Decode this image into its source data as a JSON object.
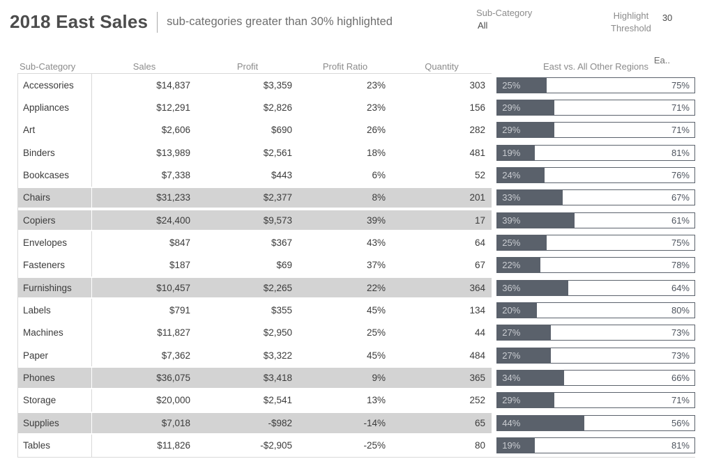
{
  "colors": {
    "bar_dark": "#5a616b",
    "highlight_row_bg": "#d3d3d3",
    "header_text": "#8b8b8b",
    "cell_text": "#3b3b3b"
  },
  "header": {
    "title": "2018 East Sales",
    "subtitle": "sub-categories greater than 30% highlighted",
    "params": {
      "sub_category": {
        "label": "Sub-Category",
        "value": "All"
      },
      "highlight_threshold": {
        "label_line1": "Highlight",
        "label_line2": "Threshold",
        "value": "30"
      }
    }
  },
  "table": {
    "columns": [
      "Sub-Category",
      "Sales",
      "Profit",
      "Profit Ratio",
      "Quantity"
    ],
    "bar_column_header": "East vs. All Other Regions",
    "truncated_header": "Ea..",
    "rows": [
      {
        "sub_category": "Accessories",
        "sales": "$14,837",
        "profit": "$3,359",
        "profit_ratio": "23%",
        "quantity": "303",
        "east_pct": 25,
        "east_label": "25%",
        "others_label": "75%",
        "highlighted": false
      },
      {
        "sub_category": "Appliances",
        "sales": "$12,291",
        "profit": "$2,826",
        "profit_ratio": "23%",
        "quantity": "156",
        "east_pct": 29,
        "east_label": "29%",
        "others_label": "71%",
        "highlighted": false
      },
      {
        "sub_category": "Art",
        "sales": "$2,606",
        "profit": "$690",
        "profit_ratio": "26%",
        "quantity": "282",
        "east_pct": 29,
        "east_label": "29%",
        "others_label": "71%",
        "highlighted": false
      },
      {
        "sub_category": "Binders",
        "sales": "$13,989",
        "profit": "$2,561",
        "profit_ratio": "18%",
        "quantity": "481",
        "east_pct": 19,
        "east_label": "19%",
        "others_label": "81%",
        "highlighted": false
      },
      {
        "sub_category": "Bookcases",
        "sales": "$7,338",
        "profit": "$443",
        "profit_ratio": "6%",
        "quantity": "52",
        "east_pct": 24,
        "east_label": "24%",
        "others_label": "76%",
        "highlighted": false
      },
      {
        "sub_category": "Chairs",
        "sales": "$31,233",
        "profit": "$2,377",
        "profit_ratio": "8%",
        "quantity": "201",
        "east_pct": 33,
        "east_label": "33%",
        "others_label": "67%",
        "highlighted": true
      },
      {
        "sub_category": "Copiers",
        "sales": "$24,400",
        "profit": "$9,573",
        "profit_ratio": "39%",
        "quantity": "17",
        "east_pct": 39,
        "east_label": "39%",
        "others_label": "61%",
        "highlighted": true
      },
      {
        "sub_category": "Envelopes",
        "sales": "$847",
        "profit": "$367",
        "profit_ratio": "43%",
        "quantity": "64",
        "east_pct": 25,
        "east_label": "25%",
        "others_label": "75%",
        "highlighted": false
      },
      {
        "sub_category": "Fasteners",
        "sales": "$187",
        "profit": "$69",
        "profit_ratio": "37%",
        "quantity": "67",
        "east_pct": 22,
        "east_label": "22%",
        "others_label": "78%",
        "highlighted": false
      },
      {
        "sub_category": "Furnishings",
        "sales": "$10,457",
        "profit": "$2,265",
        "profit_ratio": "22%",
        "quantity": "364",
        "east_pct": 36,
        "east_label": "36%",
        "others_label": "64%",
        "highlighted": true
      },
      {
        "sub_category": "Labels",
        "sales": "$791",
        "profit": "$355",
        "profit_ratio": "45%",
        "quantity": "134",
        "east_pct": 20,
        "east_label": "20%",
        "others_label": "80%",
        "highlighted": false
      },
      {
        "sub_category": "Machines",
        "sales": "$11,827",
        "profit": "$2,950",
        "profit_ratio": "25%",
        "quantity": "44",
        "east_pct": 27,
        "east_label": "27%",
        "others_label": "73%",
        "highlighted": false
      },
      {
        "sub_category": "Paper",
        "sales": "$7,362",
        "profit": "$3,322",
        "profit_ratio": "45%",
        "quantity": "484",
        "east_pct": 27,
        "east_label": "27%",
        "others_label": "73%",
        "highlighted": false
      },
      {
        "sub_category": "Phones",
        "sales": "$36,075",
        "profit": "$3,418",
        "profit_ratio": "9%",
        "quantity": "365",
        "east_pct": 34,
        "east_label": "34%",
        "others_label": "66%",
        "highlighted": true
      },
      {
        "sub_category": "Storage",
        "sales": "$20,000",
        "profit": "$2,541",
        "profit_ratio": "13%",
        "quantity": "252",
        "east_pct": 29,
        "east_label": "29%",
        "others_label": "71%",
        "highlighted": false
      },
      {
        "sub_category": "Supplies",
        "sales": "$7,018",
        "profit": "-$982",
        "profit_ratio": "-14%",
        "quantity": "65",
        "east_pct": 44,
        "east_label": "44%",
        "others_label": "56%",
        "highlighted": true
      },
      {
        "sub_category": "Tables",
        "sales": "$11,826",
        "profit": "-$2,905",
        "profit_ratio": "-25%",
        "quantity": "80",
        "east_pct": 19,
        "east_label": "19%",
        "others_label": "81%",
        "highlighted": false
      }
    ]
  },
  "chart_data": {
    "type": "table",
    "title": "2018 East Sales",
    "subtitle": "sub-categories greater than 30% highlighted",
    "columns": [
      "Sub-Category",
      "Sales",
      "Profit",
      "Profit Ratio",
      "Quantity",
      "East %",
      "All Other Regions %"
    ],
    "categories": [
      "Accessories",
      "Appliances",
      "Art",
      "Binders",
      "Bookcases",
      "Chairs",
      "Copiers",
      "Envelopes",
      "Fasteners",
      "Furnishings",
      "Labels",
      "Machines",
      "Paper",
      "Phones",
      "Storage",
      "Supplies",
      "Tables"
    ],
    "series": [
      {
        "name": "Sales",
        "values": [
          14837,
          12291,
          2606,
          13989,
          7338,
          31233,
          24400,
          847,
          187,
          10457,
          791,
          11827,
          7362,
          36075,
          20000,
          7018,
          11826
        ]
      },
      {
        "name": "Profit",
        "values": [
          3359,
          2826,
          690,
          2561,
          443,
          2377,
          9573,
          367,
          69,
          2265,
          355,
          2950,
          3322,
          3418,
          2541,
          -982,
          -2905
        ]
      },
      {
        "name": "Profit Ratio",
        "values": [
          0.23,
          0.23,
          0.26,
          0.18,
          0.06,
          0.08,
          0.39,
          0.43,
          0.37,
          0.22,
          0.45,
          0.25,
          0.45,
          0.09,
          0.13,
          -0.14,
          -0.25
        ]
      },
      {
        "name": "Quantity",
        "values": [
          303,
          156,
          282,
          481,
          52,
          201,
          17,
          64,
          67,
          364,
          134,
          44,
          484,
          365,
          252,
          65,
          80
        ]
      },
      {
        "name": "East %",
        "values": [
          25,
          29,
          29,
          19,
          24,
          33,
          39,
          25,
          22,
          36,
          20,
          27,
          27,
          34,
          29,
          44,
          19
        ]
      },
      {
        "name": "All Other Regions %",
        "values": [
          75,
          71,
          71,
          81,
          76,
          67,
          61,
          75,
          78,
          64,
          80,
          73,
          73,
          66,
          71,
          56,
          81
        ]
      }
    ],
    "embedded_bar_chart": {
      "type": "bar",
      "stacked": true,
      "orientation": "horizontal",
      "header": "East vs. All Other Regions",
      "xlim": [
        0,
        100
      ]
    },
    "highlighted_categories": [
      "Chairs",
      "Copiers",
      "Furnishings",
      "Phones",
      "Supplies"
    ],
    "highlight_rule": "East % greater than Highlight Threshold (30)"
  }
}
